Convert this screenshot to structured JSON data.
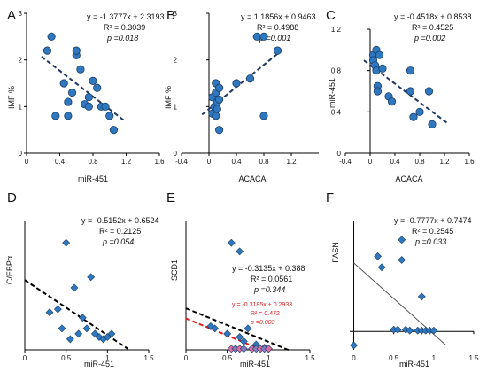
{
  "colors": {
    "marker_fill": "#2f78c0",
    "marker_stroke": "#1a3e66",
    "trend_blue": "#1f3864",
    "trend_black": "#000000",
    "trend_red": "#e02020",
    "trend_gray": "#555555",
    "marker_pink": "#e06fa0",
    "marker_purple": "#8a7ac4"
  },
  "chart_data": [
    {
      "panel": "A",
      "type": "scatter",
      "marker": "circle",
      "xlabel": "miR-451",
      "ylabel": "IMF %",
      "xlim": [
        0,
        1.6
      ],
      "ylim": [
        0,
        3
      ],
      "xticks": [
        "0",
        "0.4",
        "0.8",
        "1.2",
        "1.6"
      ],
      "yticks": [
        "0",
        "1",
        "2",
        "3"
      ],
      "equation": "y = -1.3777x + 2.3193",
      "r2": "R² = 0.3039",
      "p": "p =0.018",
      "trend": {
        "slope": -1.3777,
        "intercept": 2.3193,
        "x": [
          0.18,
          1.18
        ],
        "style": "blue"
      },
      "points": [
        [
          0.3,
          2.5
        ],
        [
          0.25,
          2.2
        ],
        [
          0.35,
          0.8
        ],
        [
          0.45,
          1.5
        ],
        [
          0.5,
          1.1
        ],
        [
          0.5,
          0.8
        ],
        [
          0.55,
          1.3
        ],
        [
          0.6,
          2.1
        ],
        [
          0.6,
          2.2
        ],
        [
          0.65,
          1.8
        ],
        [
          0.7,
          1.05
        ],
        [
          0.75,
          1.0
        ],
        [
          0.75,
          1.2
        ],
        [
          0.8,
          1.55
        ],
        [
          0.85,
          1.4
        ],
        [
          0.9,
          1.0
        ],
        [
          0.95,
          1.0
        ],
        [
          1.0,
          0.8
        ],
        [
          1.05,
          0.5
        ]
      ]
    },
    {
      "panel": "B",
      "type": "scatter",
      "marker": "circle",
      "xlabel": "ACACA",
      "ylabel": "IMF %",
      "xlim": [
        -0.4,
        1.6
      ],
      "ylim": [
        0,
        3
      ],
      "xticks": [
        "-0.4",
        "0",
        "0.4",
        "0.8",
        "1.2"
      ],
      "yticks": [
        "0",
        "1",
        "2",
        "3"
      ],
      "equation": "y = 1.1856x + 0.9463",
      "r2": "R² = 0.4988",
      "p": "p =0.001",
      "trend": {
        "slope": 1.1856,
        "intercept": 0.9463,
        "x": [
          -0.1,
          1.05
        ],
        "style": "blue"
      },
      "points": [
        [
          0.05,
          0.85
        ],
        [
          0.05,
          1.2
        ],
        [
          0.08,
          1.0
        ],
        [
          0.1,
          1.5
        ],
        [
          0.1,
          1.3
        ],
        [
          0.1,
          0.8
        ],
        [
          0.12,
          1.1
        ],
        [
          0.12,
          0.95
        ],
        [
          0.15,
          1.15
        ],
        [
          0.15,
          1.4
        ],
        [
          0.15,
          0.5
        ],
        [
          0.4,
          1.5
        ],
        [
          0.6,
          1.6
        ],
        [
          0.7,
          2.5
        ],
        [
          0.8,
          2.5
        ],
        [
          0.8,
          0.8
        ],
        [
          1.0,
          2.2
        ]
      ]
    },
    {
      "panel": "C",
      "type": "scatter",
      "marker": "circle",
      "xlabel": "ACACA",
      "ylabel": "miR-451",
      "xlim": [
        -0.4,
        1.6
      ],
      "ylim": [
        0,
        1.2
      ],
      "xticks": [
        "-0.4",
        "0",
        "0.4",
        "0.8",
        "1.2",
        "1.6"
      ],
      "yticks": [
        "0",
        "0.4",
        "0.8",
        "1.2"
      ],
      "equation": "y = -0.4518x + 0.8538",
      "r2": "R² = 0.4525",
      "p": "p =0.002",
      "trend": {
        "slope": -0.4518,
        "intercept": 0.8538,
        "x": [
          -0.1,
          1.25
        ],
        "style": "blue"
      },
      "points": [
        [
          0.05,
          0.95
        ],
        [
          0.05,
          0.9
        ],
        [
          0.08,
          0.85
        ],
        [
          0.1,
          1.0
        ],
        [
          0.1,
          0.8
        ],
        [
          0.12,
          0.65
        ],
        [
          0.12,
          0.6
        ],
        [
          0.15,
          0.95
        ],
        [
          0.2,
          0.82
        ],
        [
          0.3,
          0.55
        ],
        [
          0.35,
          0.5
        ],
        [
          0.65,
          0.8
        ],
        [
          0.65,
          0.6
        ],
        [
          0.7,
          0.35
        ],
        [
          0.8,
          0.4
        ],
        [
          0.95,
          0.6
        ],
        [
          1.0,
          0.28
        ]
      ]
    },
    {
      "panel": "D",
      "type": "scatter",
      "marker": "diamond",
      "xlabel": "miR-451",
      "ylabel": "C/EBPα",
      "xlim": [
        0,
        1.5
      ],
      "ylim": [
        0,
        1.2
      ],
      "xticks": [
        "0",
        "0.5",
        "1",
        "1.5"
      ],
      "yticks": [],
      "equation": "y = -0.5152x + 0.6524",
      "r2": "R² = 0.2125",
      "p": "p =0.054",
      "trend": {
        "slope": -0.5152,
        "intercept": 0.6524,
        "x": [
          0.0,
          1.25
        ],
        "style": "black"
      },
      "points": [
        [
          0.3,
          0.35
        ],
        [
          0.4,
          0.38
        ],
        [
          0.45,
          0.2
        ],
        [
          0.5,
          1.0
        ],
        [
          0.55,
          0.1
        ],
        [
          0.6,
          0.58
        ],
        [
          0.65,
          0.15
        ],
        [
          0.7,
          0.3
        ],
        [
          0.75,
          0.2
        ],
        [
          0.8,
          0.68
        ],
        [
          0.85,
          0.15
        ],
        [
          0.9,
          0.12
        ],
        [
          0.95,
          0.1
        ],
        [
          1.0,
          0.12
        ],
        [
          1.05,
          0.15
        ]
      ]
    },
    {
      "panel": "E",
      "type": "scatter",
      "marker": "diamond",
      "xlabel": "miR-451",
      "ylabel": "SCD1",
      "xlim": [
        0,
        1.5
      ],
      "ylim": [
        0,
        1.2
      ],
      "xticks": [
        "0",
        "0.5",
        "1",
        "1.5"
      ],
      "yticks": [],
      "equation": "y = -0.3135x + 0.388",
      "r2": "R² = 0.0561",
      "p": "p =0.344",
      "equation2": "y = -0.3185x + 0.2933",
      "r2_2": "R² = 0.472",
      "p_2": "p =0.003",
      "trend": {
        "slope": -0.3135,
        "intercept": 0.388,
        "x": [
          0.0,
          1.25
        ],
        "style": "black"
      },
      "trend2": {
        "slope": -0.3185,
        "intercept": 0.2933,
        "x": [
          0.0,
          0.95
        ],
        "style": "red"
      },
      "points": [
        [
          0.3,
          0.22
        ],
        [
          0.35,
          0.2
        ],
        [
          0.5,
          0.15
        ],
        [
          0.55,
          1.0
        ],
        [
          0.6,
          0.01
        ],
        [
          0.65,
          0.92
        ],
        [
          0.65,
          0.12
        ],
        [
          0.7,
          0.08
        ],
        [
          0.75,
          0.2
        ],
        [
          0.8,
          0.01
        ],
        [
          0.85,
          0.05
        ],
        [
          0.9,
          0.01
        ],
        [
          0.95,
          0.02
        ],
        [
          1.0,
          0.01
        ]
      ],
      "points2": [
        [
          0.55,
          0.01
        ],
        [
          0.6,
          0.01
        ],
        [
          0.65,
          0.01
        ],
        [
          0.7,
          0.01
        ],
        [
          0.8,
          0.01
        ],
        [
          0.85,
          0.01
        ],
        [
          0.9,
          0.01
        ],
        [
          0.95,
          0.01
        ],
        [
          1.0,
          0.01
        ]
      ]
    },
    {
      "panel": "F",
      "type": "scatter",
      "marker": "diamond",
      "xlabel": "miR-451",
      "ylabel": "FASN",
      "xlim": [
        -0.05,
        1.5
      ],
      "ylim": [
        -0.2,
        1.2
      ],
      "xticks": [
        "0",
        "0.5",
        "1",
        "1.5"
      ],
      "yticks": [],
      "equation": "y = -0.7777x + 0.7474",
      "r2": "R² = 0.2545",
      "p": "p =0.033",
      "trend": {
        "slope": -0.7777,
        "intercept": 0.7474,
        "x": [
          0.0,
          1.15
        ],
        "style": "gray"
      },
      "points": [
        [
          0.3,
          0.82
        ],
        [
          0.35,
          0.7
        ],
        [
          0.5,
          0.02
        ],
        [
          0.55,
          0.02
        ],
        [
          0.6,
          1.0
        ],
        [
          0.6,
          0.78
        ],
        [
          0.65,
          0.02
        ],
        [
          0.7,
          0.01
        ],
        [
          0.8,
          0.01
        ],
        [
          0.85,
          0.38
        ],
        [
          0.85,
          0.01
        ],
        [
          0.9,
          0.01
        ],
        [
          0.95,
          0.01
        ],
        [
          1.0,
          0.01
        ],
        [
          0.0,
          -0.15
        ]
      ]
    }
  ]
}
